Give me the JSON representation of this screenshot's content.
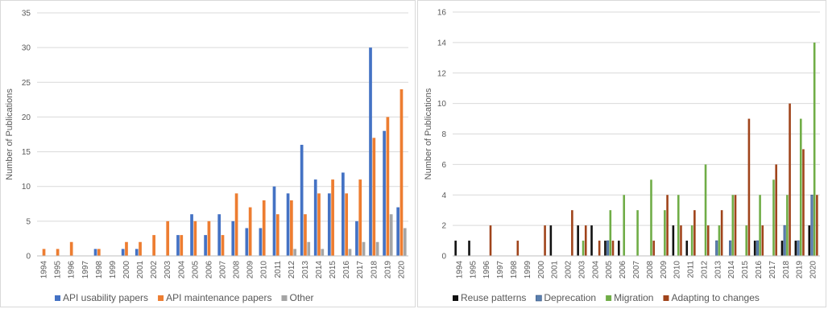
{
  "chart_data": [
    {
      "type": "bar",
      "title": "",
      "xlabel": "",
      "ylabel": "Number of Publications",
      "ylim": [
        0,
        35
      ],
      "yticks": [
        0,
        5,
        10,
        15,
        20,
        25,
        30,
        35
      ],
      "grid": true,
      "legend": "bottom",
      "categories": [
        "1994",
        "1995",
        "1996",
        "1997",
        "1998",
        "1999",
        "2000",
        "2001",
        "2002",
        "2003",
        "2004",
        "2005",
        "2006",
        "2007",
        "2008",
        "2009",
        "2010",
        "2011",
        "2012",
        "2013",
        "2014",
        "2015",
        "2016",
        "2017",
        "2018",
        "2019",
        "2020"
      ],
      "series": [
        {
          "name": "API usability papers",
          "color": "#4472c4",
          "values": [
            0,
            0,
            0,
            0,
            1,
            0,
            1,
            1,
            0,
            0,
            3,
            6,
            3,
            6,
            5,
            4,
            4,
            10,
            9,
            16,
            11,
            9,
            12,
            5,
            30,
            18,
            7
          ]
        },
        {
          "name": "API maintenance papers",
          "color": "#ed7d31",
          "values": [
            1,
            1,
            2,
            0,
            1,
            0,
            2,
            2,
            3,
            5,
            3,
            5,
            5,
            3,
            9,
            7,
            8,
            6,
            8,
            6,
            9,
            11,
            9,
            11,
            17,
            20,
            24
          ]
        },
        {
          "name": "Other",
          "color": "#a5a5a5",
          "values": [
            0,
            0,
            0,
            0,
            0,
            0,
            0,
            0,
            0,
            0,
            0,
            0,
            0,
            0,
            0,
            0,
            0,
            0,
            1,
            2,
            1,
            0,
            1,
            2,
            2,
            6,
            4
          ]
        }
      ]
    },
    {
      "type": "bar",
      "title": "",
      "xlabel": "",
      "ylabel": "Number of Publications",
      "ylim": [
        0,
        16
      ],
      "yticks": [
        0,
        2,
        4,
        6,
        8,
        10,
        12,
        14,
        16
      ],
      "grid": true,
      "legend": "bottom",
      "categories": [
        "1994",
        "1995",
        "1996",
        "1997",
        "1998",
        "1999",
        "2000",
        "2001",
        "2002",
        "2003",
        "2004",
        "2005",
        "2006",
        "2007",
        "2008",
        "2009",
        "2010",
        "2011",
        "2012",
        "2013",
        "2014",
        "2015",
        "2016",
        "2017",
        "2018",
        "2019",
        "2020"
      ],
      "series": [
        {
          "name": "Reuse patterns",
          "color": "#111111",
          "values": [
            1,
            1,
            0,
            0,
            0,
            0,
            0,
            2,
            0,
            2,
            2,
            1,
            1,
            0,
            0,
            0,
            2,
            1,
            0,
            0,
            0,
            0,
            1,
            0,
            1,
            1,
            2
          ]
        },
        {
          "name": "Deprecation",
          "color": "#5a7fae",
          "values": [
            0,
            0,
            0,
            0,
            0,
            0,
            0,
            0,
            0,
            0,
            0,
            1,
            0,
            0,
            0,
            0,
            0,
            0,
            0,
            1,
            1,
            0,
            1,
            0,
            2,
            1,
            4
          ]
        },
        {
          "name": "Migration",
          "color": "#70ad47",
          "values": [
            0,
            0,
            0,
            0,
            0,
            0,
            0,
            0,
            0,
            1,
            0,
            3,
            4,
            3,
            5,
            3,
            4,
            2,
            6,
            2,
            4,
            2,
            4,
            5,
            4,
            9,
            14
          ]
        },
        {
          "name": "Adapting to changes",
          "color": "#a0441b",
          "values": [
            0,
            0,
            2,
            0,
            1,
            0,
            2,
            0,
            3,
            2,
            1,
            1,
            0,
            0,
            1,
            4,
            2,
            3,
            2,
            3,
            4,
            9,
            2,
            6,
            10,
            7,
            4
          ]
        }
      ]
    }
  ]
}
